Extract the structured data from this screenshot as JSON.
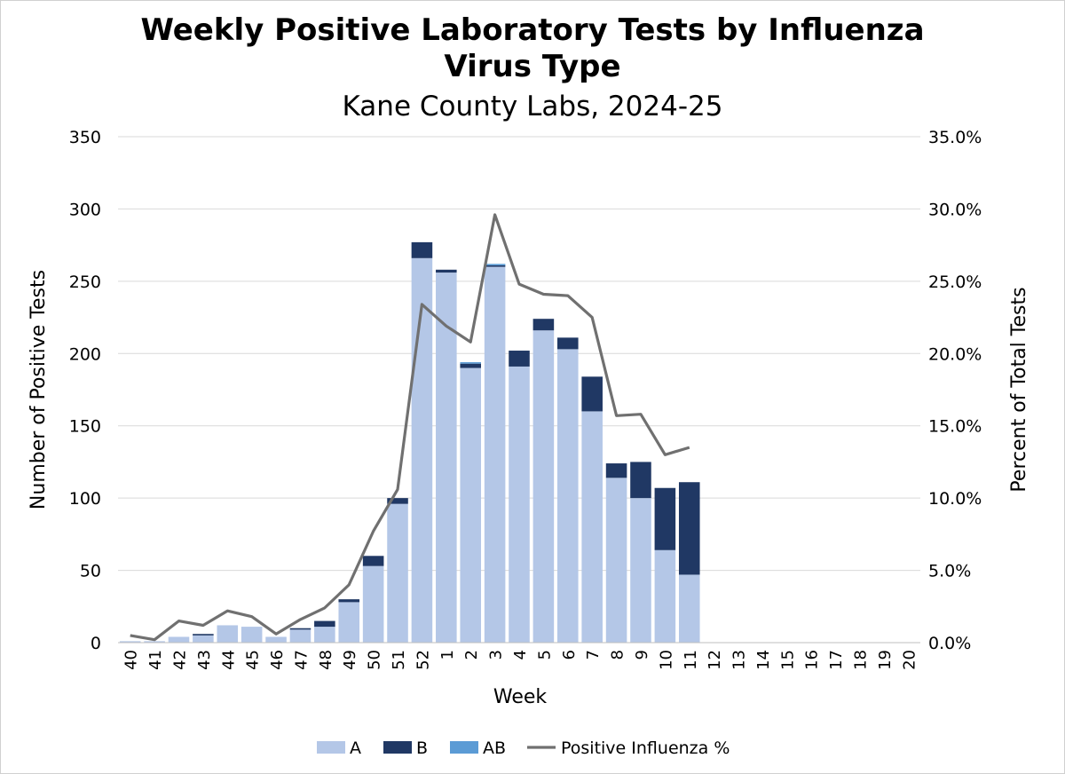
{
  "chart_data": {
    "type": "bar",
    "title_line1": "Weekly Positive Laboratory Tests by Influenza",
    "title_line2": "Virus Type",
    "subtitle": "Kane County Labs, 2024-25",
    "xlabel": "Week",
    "ylabel": "Number of Positive Tests",
    "y2label": "Percent of Total Tests",
    "ylim": [
      0,
      350
    ],
    "y2lim": [
      0,
      35
    ],
    "yticks": [
      "0",
      "50",
      "100",
      "150",
      "200",
      "250",
      "300",
      "350"
    ],
    "y2ticks": [
      "0.0%",
      "5.0%",
      "10.0%",
      "15.0%",
      "20.0%",
      "25.0%",
      "30.0%",
      "35.0%"
    ],
    "categories": [
      "40",
      "41",
      "42",
      "43",
      "44",
      "45",
      "46",
      "47",
      "48",
      "49",
      "50",
      "51",
      "52",
      "1",
      "2",
      "3",
      "4",
      "5",
      "6",
      "7",
      "8",
      "9",
      "10",
      "11",
      "12",
      "13",
      "14",
      "15",
      "16",
      "17",
      "18",
      "19",
      "20"
    ],
    "series": [
      {
        "name": "A",
        "type": "bar",
        "color": "#b4c7e7",
        "values": [
          1,
          1,
          4,
          5,
          12,
          11,
          4,
          9,
          11,
          28,
          53,
          96,
          266,
          256,
          190,
          260,
          191,
          216,
          203,
          160,
          114,
          100,
          64,
          47,
          null,
          null,
          null,
          null,
          null,
          null,
          null,
          null,
          null
        ]
      },
      {
        "name": "B",
        "type": "bar",
        "color": "#203864",
        "values": [
          0,
          0,
          0,
          1,
          0,
          0,
          0,
          1,
          4,
          2,
          7,
          4,
          11,
          2,
          3,
          1,
          11,
          8,
          8,
          24,
          10,
          25,
          43,
          64,
          null,
          null,
          null,
          null,
          null,
          null,
          null,
          null,
          null
        ]
      },
      {
        "name": "AB",
        "type": "bar",
        "color": "#5b9bd5",
        "values": [
          0,
          0,
          0,
          0,
          0,
          0,
          0,
          0,
          0,
          0,
          0,
          0,
          0,
          0,
          1,
          1,
          0,
          0,
          0,
          0,
          0,
          0,
          0,
          0,
          null,
          null,
          null,
          null,
          null,
          null,
          null,
          null,
          null
        ]
      },
      {
        "name": "Positive Influenza %",
        "type": "line",
        "axis": "right",
        "color": "#707070",
        "values": [
          0.5,
          0.2,
          1.5,
          1.2,
          2.2,
          1.8,
          0.6,
          1.6,
          2.4,
          4.0,
          7.7,
          10.6,
          23.4,
          21.9,
          20.8,
          29.6,
          24.8,
          24.1,
          24.0,
          22.5,
          15.7,
          15.8,
          13.0,
          13.5,
          null,
          null,
          null,
          null,
          null,
          null,
          null,
          null,
          null
        ]
      }
    ],
    "legend": {
      "placement": "bottom",
      "items": [
        "A",
        "B",
        "AB",
        "Positive Influenza %"
      ]
    },
    "grid": true
  }
}
